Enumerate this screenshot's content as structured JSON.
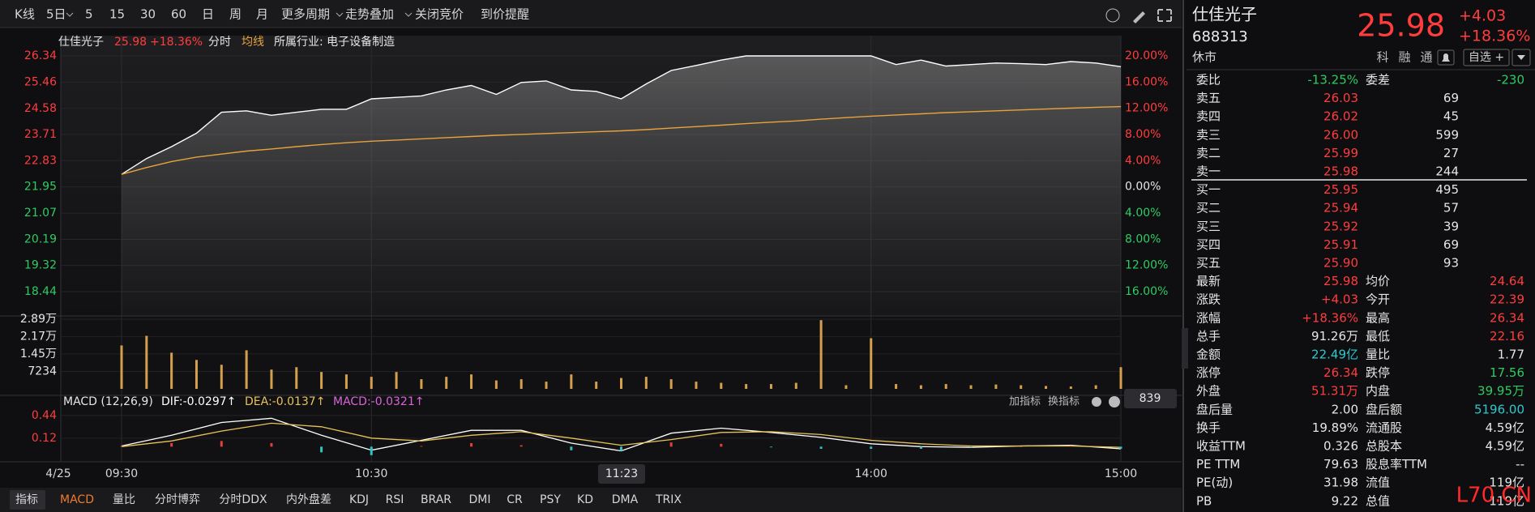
{
  "toolbar": {
    "items": [
      "K线",
      "5日",
      "5",
      "15",
      "30",
      "60",
      "日",
      "周",
      "月",
      "更多周期",
      "走势叠加",
      "关闭竞价",
      "到价提醒"
    ]
  },
  "chart_header": {
    "name": "仕佳光子",
    "price": "25.98",
    "change_pct": "+18.36%",
    "industry": "所属行业: 电子设备制造",
    "date": "4/25",
    "cursor_time": "11:23",
    "cursor_value": "839",
    "add_indicator": "加指标",
    "switch_indicator": "换指标"
  },
  "chart_data": [
    {
      "type": "line",
      "x": [
        0,
        6,
        12,
        18,
        24,
        30,
        36,
        42,
        48,
        54,
        60,
        66,
        72,
        78,
        84,
        90,
        96,
        102,
        108,
        114,
        120,
        126,
        132,
        138,
        144,
        150,
        156,
        162,
        168,
        174,
        180,
        186,
        192,
        198,
        204,
        210,
        216,
        222,
        228,
        234,
        240
      ],
      "xlim": [
        0,
        240
      ],
      "xticks": [
        {
          "value": 0,
          "label": "09:30"
        },
        {
          "value": 60,
          "label": "10:30"
        },
        {
          "value": 180,
          "label": "14:00"
        },
        {
          "value": 240,
          "label": "15:00"
        }
      ],
      "ylim": [
        18.44,
        26.34
      ],
      "yticks": [
        26.34,
        25.46,
        24.58,
        23.71,
        22.83,
        21.95,
        21.07,
        20.19,
        19.32,
        18.44
      ],
      "y2lim": [
        -16,
        20
      ],
      "y2ticks": [
        {
          "value": 20,
          "label": "20.00%"
        },
        {
          "value": 16,
          "label": "16.00%"
        },
        {
          "value": 12,
          "label": "12.00%"
        },
        {
          "value": 8,
          "label": "8.00%"
        },
        {
          "value": 4,
          "label": "4.00%"
        },
        {
          "value": 0,
          "label": "0.00%"
        },
        {
          "value": -4,
          "label": "4.00%"
        },
        {
          "value": -8,
          "label": "8.00%"
        },
        {
          "value": -12,
          "label": "12.00%"
        },
        {
          "value": -16,
          "label": "16.00%"
        }
      ],
      "grid": true,
      "series": [
        {
          "name": "分时",
          "color": "#ffffff",
          "values": [
            22.37,
            22.9,
            23.3,
            23.75,
            24.45,
            24.5,
            24.35,
            24.45,
            24.55,
            24.55,
            24.9,
            24.95,
            25.0,
            25.2,
            25.35,
            25.05,
            25.45,
            25.5,
            25.2,
            25.15,
            24.9,
            25.4,
            25.85,
            26.02,
            26.2,
            26.34,
            26.34,
            26.34,
            26.34,
            26.34,
            26.34,
            26.05,
            26.2,
            26.0,
            26.05,
            26.1,
            26.08,
            26.05,
            26.15,
            26.1,
            25.98
          ]
        },
        {
          "name": "均线",
          "color": "#e8a33c",
          "values": [
            22.37,
            22.6,
            22.8,
            22.95,
            23.05,
            23.15,
            23.22,
            23.3,
            23.37,
            23.43,
            23.48,
            23.52,
            23.56,
            23.6,
            23.64,
            23.68,
            23.71,
            23.74,
            23.77,
            23.8,
            23.83,
            23.87,
            23.92,
            23.97,
            24.02,
            24.07,
            24.12,
            24.16,
            24.22,
            24.27,
            24.32,
            24.36,
            24.4,
            24.44,
            24.47,
            24.5,
            24.53,
            24.56,
            24.59,
            24.62,
            24.64
          ]
        }
      ]
    },
    {
      "type": "bar",
      "x": [
        0,
        6,
        12,
        18,
        24,
        30,
        36,
        42,
        48,
        54,
        60,
        66,
        72,
        78,
        84,
        90,
        96,
        102,
        108,
        114,
        120,
        126,
        132,
        138,
        144,
        150,
        156,
        162,
        168,
        174,
        180,
        186,
        192,
        198,
        204,
        210,
        216,
        222,
        228,
        234,
        240
      ],
      "xlim": [
        0,
        240
      ],
      "ylim": [
        0,
        28900
      ],
      "yticks": [
        {
          "value": 28900,
          "label": "2.89万"
        },
        {
          "value": 21700,
          "label": "2.17万"
        },
        {
          "value": 14500,
          "label": "1.45万"
        },
        7234
      ],
      "color": "#d4a04c",
      "values": [
        18000,
        22000,
        15000,
        12000,
        10000,
        16000,
        8000,
        9000,
        7000,
        6000,
        5000,
        7000,
        4000,
        5000,
        6000,
        3500,
        4000,
        3000,
        6000,
        3000,
        4500,
        5000,
        4000,
        3000,
        2500,
        2000,
        2000,
        2500,
        28500,
        1500,
        21000,
        2000,
        1500,
        2000,
        1500,
        1800,
        1500,
        1200,
        1000,
        1500,
        9000
      ]
    },
    {
      "type": "line",
      "title": "MACD (12,26,9)",
      "x": [
        0,
        12,
        24,
        36,
        48,
        60,
        72,
        84,
        96,
        108,
        120,
        132,
        144,
        156,
        168,
        180,
        192,
        204,
        216,
        228,
        240
      ],
      "xlim": [
        0,
        240
      ],
      "ylim": [
        -0.19,
        0.54
      ],
      "yticks": [
        0.44,
        0.12
      ],
      "series": [
        {
          "name": "DIF:-0.0297↑",
          "color": "#ffffff",
          "values": [
            0.01,
            0.16,
            0.34,
            0.4,
            0.16,
            -0.05,
            0.09,
            0.23,
            0.23,
            0.05,
            -0.06,
            0.19,
            0.26,
            0.2,
            0.13,
            0.04,
            0.0,
            -0.01,
            0.01,
            0.02,
            -0.03
          ]
        },
        {
          "name": "DEA:-0.0137↑",
          "color": "#e8c25a",
          "values": [
            0.0,
            0.08,
            0.22,
            0.33,
            0.28,
            0.12,
            0.08,
            0.16,
            0.21,
            0.12,
            0.02,
            0.1,
            0.2,
            0.21,
            0.17,
            0.09,
            0.04,
            0.01,
            0.01,
            0.01,
            -0.01
          ]
        },
        {
          "name": "MACD:-0.0321↑",
          "color": "#d864d8",
          "type": "bar",
          "up_color": "#e0403a",
          "down_color": "#2ec4c4",
          "values": [
            0.01,
            0.05,
            0.08,
            0.05,
            -0.08,
            -0.12,
            0.01,
            0.05,
            0.02,
            -0.05,
            -0.06,
            0.06,
            0.04,
            -0.01,
            -0.03,
            -0.03,
            -0.03,
            -0.01,
            0.0,
            0.01,
            -0.03
          ]
        }
      ]
    }
  ],
  "indicator_tabs": {
    "items": [
      "指标",
      "MACD",
      "量比",
      "分时博弈",
      "分时DDX",
      "内外盘差",
      "KDJ",
      "RSI",
      "BRAR",
      "DMI",
      "CR",
      "PSY",
      "KD",
      "DMA",
      "TRIX"
    ],
    "active": "MACD"
  },
  "quote": {
    "name": "仕佳光子",
    "code": "688313",
    "price": "25.98",
    "change": "+4.03",
    "change_pct": "+18.36%",
    "status": "休市",
    "tags": [
      "科",
      "融",
      "通"
    ],
    "watchlist": "自选 +"
  },
  "order_book": {
    "ratio_label": "委比",
    "ratio": "-13.25%",
    "diff_label": "委差",
    "diff": "-230",
    "asks": [
      {
        "label": "卖五",
        "price": "26.03",
        "volume": "69"
      },
      {
        "label": "卖四",
        "price": "26.02",
        "volume": "45"
      },
      {
        "label": "卖三",
        "price": "26.00",
        "volume": "599"
      },
      {
        "label": "卖二",
        "price": "25.99",
        "volume": "27"
      },
      {
        "label": "卖一",
        "price": "25.98",
        "volume": "244"
      }
    ],
    "bids": [
      {
        "label": "买一",
        "price": "25.95",
        "volume": "495"
      },
      {
        "label": "买二",
        "price": "25.94",
        "volume": "57"
      },
      {
        "label": "买三",
        "price": "25.92",
        "volume": "39"
      },
      {
        "label": "买四",
        "price": "25.91",
        "volume": "69"
      },
      {
        "label": "买五",
        "price": "25.90",
        "volume": "93"
      }
    ]
  },
  "stats": [
    [
      {
        "label": "最新",
        "value": "25.98",
        "color": "#ff3d3d"
      },
      {
        "label": "均价",
        "value": "24.64",
        "color": "#ff3d3d"
      }
    ],
    [
      {
        "label": "涨跌",
        "value": "+4.03",
        "color": "#ff3d3d"
      },
      {
        "label": "今开",
        "value": "22.39",
        "color": "#ff3d3d"
      }
    ],
    [
      {
        "label": "涨幅",
        "value": "+18.36%",
        "color": "#ff3d3d"
      },
      {
        "label": "最高",
        "value": "26.34",
        "color": "#ff3d3d"
      }
    ],
    [
      {
        "label": "总手",
        "value": "91.26万",
        "color": "#e6e6e6"
      },
      {
        "label": "最低",
        "value": "22.16",
        "color": "#ff3d3d"
      }
    ],
    [
      {
        "label": "金额",
        "value": "22.49亿",
        "color": "#2ec8d0"
      },
      {
        "label": "量比",
        "value": "1.77",
        "color": "#e6e6e6"
      }
    ],
    [
      {
        "label": "涨停",
        "value": "26.34",
        "color": "#ff3d3d"
      },
      {
        "label": "跌停",
        "value": "17.56",
        "color": "#2ecc62"
      }
    ],
    [
      {
        "label": "外盘",
        "value": "51.31万",
        "color": "#ff3d3d"
      },
      {
        "label": "内盘",
        "value": "39.95万",
        "color": "#2ecc62"
      }
    ],
    [
      {
        "label": "盘后量",
        "value": "2.00",
        "color": "#e6e6e6"
      },
      {
        "label": "盘后额",
        "value": "5196.00",
        "color": "#2ec8d0"
      }
    ],
    [
      {
        "label": "换手",
        "value": "19.89%",
        "color": "#e6e6e6"
      },
      {
        "label": "流通股",
        "value": "4.59亿",
        "color": "#e6e6e6"
      }
    ],
    [
      {
        "label": "收益TTM",
        "value": "0.326",
        "color": "#e6e6e6"
      },
      {
        "label": "总股本",
        "value": "4.59亿",
        "color": "#e6e6e6"
      }
    ],
    [
      {
        "label": "PE TTM",
        "value": "79.63",
        "color": "#e6e6e6"
      },
      {
        "label": "股息率TTM",
        "value": "--",
        "color": "#e6e6e6"
      }
    ],
    [
      {
        "label": "PE(动)",
        "value": "31.98",
        "color": "#e6e6e6"
      },
      {
        "label": "流值",
        "value": "119亿",
        "color": "#e6e6e6"
      }
    ],
    [
      {
        "label": "PB",
        "value": "9.22",
        "color": "#e6e6e6"
      },
      {
        "label": "总值",
        "value": "119亿",
        "color": "#e6e6e6"
      }
    ]
  ],
  "watermark": "L70.CN"
}
